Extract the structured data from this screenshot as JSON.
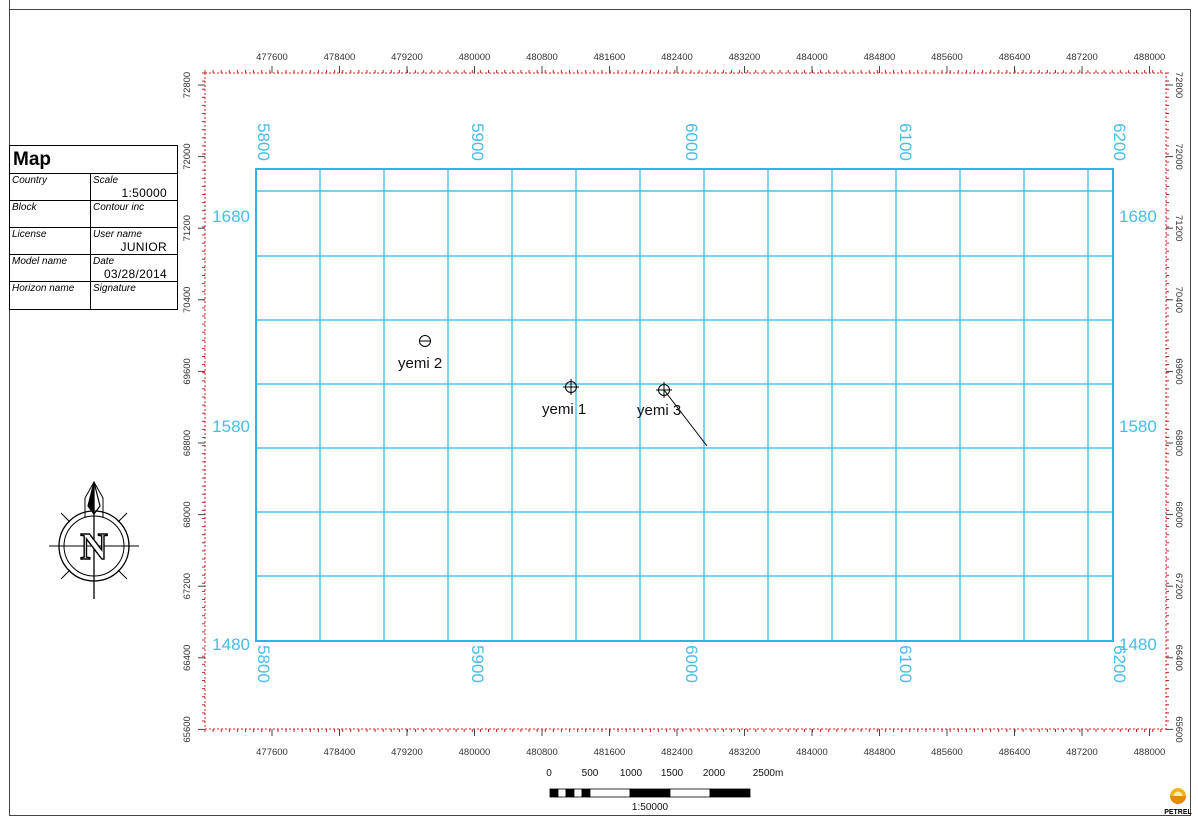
{
  "info_box": {
    "title": "Map",
    "rows": [
      {
        "left_label": "Country",
        "right_label": "Scale",
        "right_value": "1:50000"
      },
      {
        "left_label": "Block",
        "right_label": "Contour inc",
        "right_value": ""
      },
      {
        "left_label": "License",
        "right_label": "User name",
        "right_value": "JUNIOR"
      },
      {
        "left_label": "Model name",
        "right_label": "Date",
        "right_value": "03/28/2014"
      },
      {
        "left_label": "Horizon name",
        "right_label": "Signature",
        "right_value": ""
      }
    ]
  },
  "x_axis_ticks": [
    "477600",
    "478400",
    "479200",
    "480000",
    "480800",
    "481600",
    "482400",
    "483200",
    "484000",
    "484800",
    "485600",
    "486400",
    "487200",
    "488000"
  ],
  "y_axis_ticks": [
    "72800",
    "72000",
    "71200",
    "70400",
    "69600",
    "68800",
    "68000",
    "67200",
    "66400",
    "65600"
  ],
  "grid_col_labels": [
    "5800",
    "5900",
    "6000",
    "6100",
    "6200"
  ],
  "grid_row_labels": [
    "1680",
    "1580",
    "1480"
  ],
  "wells": [
    {
      "name": "yemi 2",
      "symbol": "dry"
    },
    {
      "name": "yemi 1",
      "symbol": "cross"
    },
    {
      "name": "yemi 3",
      "symbol": "cross-deviated"
    }
  ],
  "scale_bar": {
    "labels": [
      "0",
      "500",
      "1000",
      "1500",
      "2000",
      "2500m"
    ],
    "ratio": "1:50000"
  },
  "logo_text": "PETREL",
  "colors": {
    "grid": "#29b5e8",
    "grid_label": "#45bde8",
    "frame": "#cc2222",
    "axis_text": "#333333"
  },
  "north_arrow": {
    "letter": "N"
  }
}
